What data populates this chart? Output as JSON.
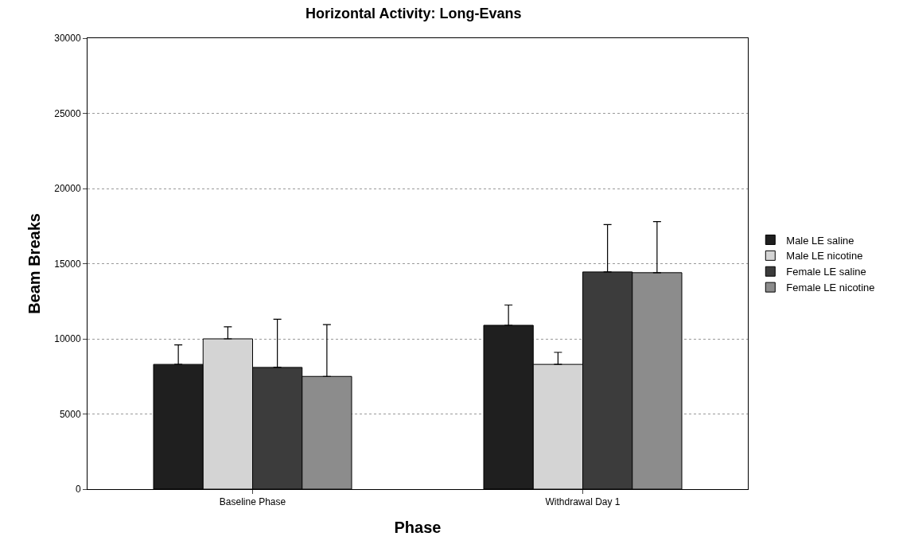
{
  "chart_data": {
    "type": "bar",
    "title": "Horizontal Activity: Long-Evans",
    "xlabel": "Phase",
    "ylabel": "Beam Breaks",
    "categories": [
      "Baseline Phase",
      "Withdrawal Day 1"
    ],
    "series": [
      {
        "name": "Male LE saline",
        "color": "#1f1f1f",
        "values": [
          8300,
          10900
        ],
        "errors": [
          [
            8300,
            9600
          ],
          [
            10900,
            12250
          ]
        ]
      },
      {
        "name": "Male LE nicotine",
        "color": "#d4d4d4",
        "values": [
          10000,
          8300
        ],
        "errors": [
          [
            10000,
            10800
          ],
          [
            8300,
            9100
          ]
        ]
      },
      {
        "name": "Female LE saline",
        "color": "#3c3c3c",
        "values": [
          8100,
          14450
        ],
        "errors": [
          [
            8100,
            11300
          ],
          [
            14450,
            17600
          ]
        ]
      },
      {
        "name": "Female LE nicotine",
        "color": "#8c8c8c",
        "values": [
          7500,
          14400
        ],
        "errors": [
          [
            7500,
            10950
          ],
          [
            14400,
            17800
          ]
        ]
      }
    ],
    "ylim": [
      0,
      30000
    ],
    "yticks": [
      0,
      5000,
      10000,
      15000,
      20000,
      25000,
      30000
    ],
    "grid": "y",
    "legend": "right"
  }
}
